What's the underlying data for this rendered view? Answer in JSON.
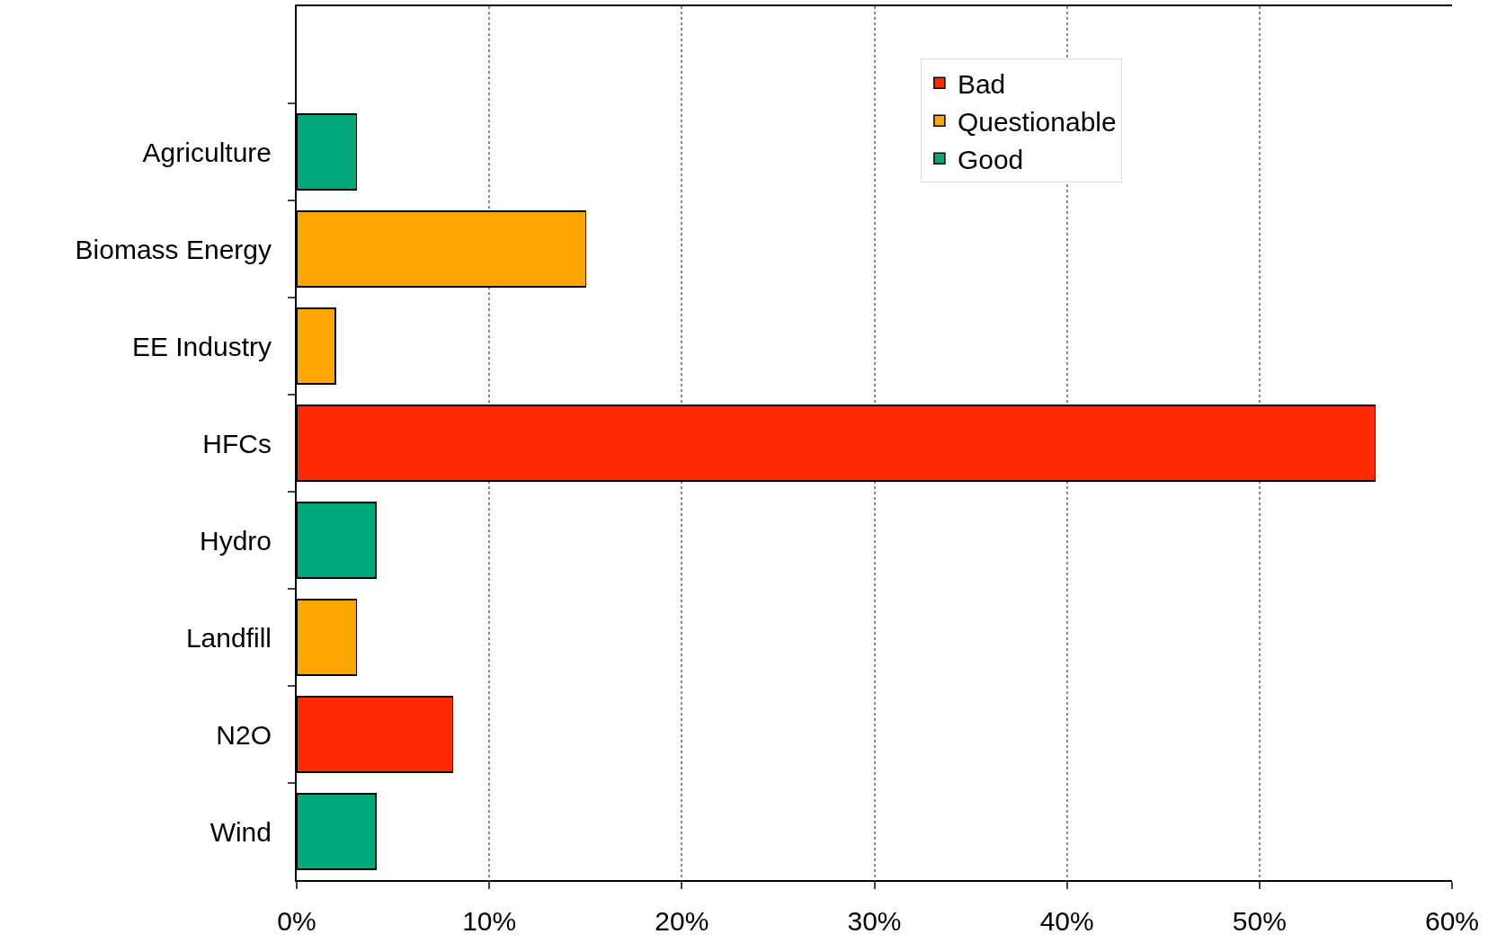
{
  "chart_data": {
    "type": "bar",
    "orientation": "horizontal",
    "stacked": true,
    "categories": [
      null,
      "Agriculture",
      "Biomass Energy",
      "EE Industry",
      "HFCs",
      "Hydro",
      "Landfill",
      "N2O",
      "Wind"
    ],
    "series": [
      {
        "name": "Good",
        "color": "#00a77a",
        "values": [
          null,
          3.1,
          null,
          null,
          null,
          4.1,
          null,
          null,
          4.1
        ]
      },
      {
        "name": "Questionable",
        "color": "#ffa500",
        "values": [
          null,
          null,
          15,
          2,
          null,
          null,
          3.1,
          null,
          null
        ]
      },
      {
        "name": "Bad",
        "color": "#ff2a00",
        "values": [
          null,
          null,
          null,
          null,
          56,
          null,
          null,
          8.1,
          null
        ]
      }
    ],
    "xlim": [
      0,
      60
    ],
    "xticks": [
      {
        "value": 0,
        "label": "0%"
      },
      {
        "value": 10,
        "label": "10%"
      },
      {
        "value": 20,
        "label": "20%"
      },
      {
        "value": 30,
        "label": "30%"
      },
      {
        "value": 40,
        "label": "40%"
      },
      {
        "value": 50,
        "label": "50%"
      },
      {
        "value": 60,
        "label": "60%"
      }
    ],
    "grid": "x",
    "legend": "top right"
  }
}
